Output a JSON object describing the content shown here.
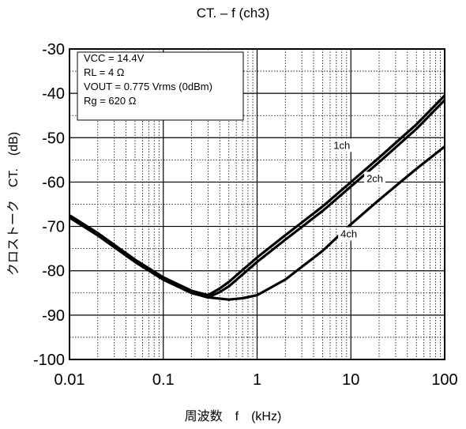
{
  "chart_data": {
    "type": "line",
    "title": "CT. – f (ch3)",
    "xlabel": "周波数　f　(kHz)",
    "ylabel": "クロストーク　CT.　(dB)",
    "x_scale": "log",
    "xlim": [
      0.01,
      100
    ],
    "ylim": [
      -100,
      -30
    ],
    "x_tick_labels": [
      "0.01",
      "0.1",
      "1",
      "10",
      "100"
    ],
    "y_tick_labels": [
      "-30",
      "-40",
      "-50",
      "-60",
      "-70",
      "-80",
      "-90",
      "-100"
    ],
    "grid": true,
    "conditions": [
      "VCC = 14.4V",
      "RL = 4 Ω",
      "VOUT = 0.775 Vrms (0dBm)",
      "Rg = 620 Ω"
    ],
    "series": [
      {
        "name": "1ch",
        "x": [
          0.01,
          0.02,
          0.05,
          0.1,
          0.2,
          0.3,
          0.4,
          0.5,
          1,
          2,
          5,
          10,
          20,
          50,
          100
        ],
        "y": [
          -67.5,
          -71.5,
          -77.5,
          -81.5,
          -84.5,
          -85.5,
          -84,
          -82.5,
          -77,
          -72,
          -65.5,
          -60,
          -54.5,
          -47,
          -40.5
        ]
      },
      {
        "name": "2ch",
        "x": [
          0.01,
          0.02,
          0.05,
          0.1,
          0.2,
          0.3,
          0.4,
          0.5,
          1,
          2,
          5,
          10,
          20,
          50,
          100
        ],
        "y": [
          -68,
          -72,
          -78,
          -82,
          -85,
          -86,
          -84.8,
          -83.5,
          -78,
          -73,
          -66.5,
          -61,
          -55.5,
          -48,
          -41.5
        ]
      },
      {
        "name": "4ch",
        "x": [
          0.01,
          0.02,
          0.05,
          0.1,
          0.2,
          0.3,
          0.5,
          0.7,
          1,
          2,
          5,
          10,
          20,
          50,
          100
        ],
        "y": [
          -68,
          -72,
          -78,
          -82,
          -85,
          -86,
          -86.5,
          -86.2,
          -85.5,
          -82,
          -75.5,
          -69.5,
          -64,
          -57,
          -52
        ]
      }
    ],
    "series_label_positions": {
      "1ch": [
        8,
        -52.5
      ],
      "2ch": [
        18,
        -60
      ],
      "4ch": [
        9.5,
        -72.5
      ]
    }
  }
}
